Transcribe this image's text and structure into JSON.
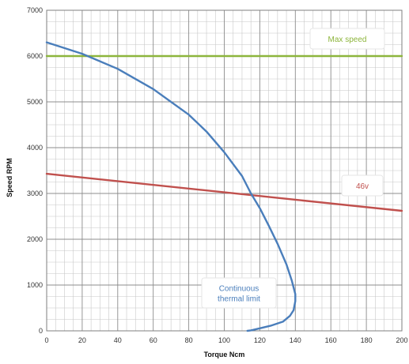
{
  "chart_data": {
    "type": "line",
    "title": "",
    "xlabel": "Torque Ncm",
    "ylabel": "Speed RPM",
    "xlim": [
      0,
      200
    ],
    "ylim": [
      0,
      7000
    ],
    "x_ticks": [
      0,
      20,
      40,
      60,
      80,
      100,
      120,
      140,
      160,
      180,
      200
    ],
    "y_ticks": [
      0,
      1000,
      2000,
      3000,
      4000,
      5000,
      6000,
      7000
    ],
    "x_minor_step": 5,
    "y_minor_step": 250,
    "grid": true,
    "series": [
      {
        "name": "Max speed",
        "color": "#8db53c",
        "x": [
          0,
          200
        ],
        "y": [
          6000,
          6000
        ]
      },
      {
        "name": "46v",
        "color": "#c0504d",
        "x": [
          0,
          200
        ],
        "y": [
          3430,
          2620
        ]
      },
      {
        "name": "Continuous thermal limit",
        "color": "#4a7ebb",
        "x": [
          0,
          20,
          40,
          60,
          80,
          90,
          100,
          110,
          115,
          120,
          125,
          130,
          135,
          138,
          140,
          140,
          139,
          137,
          133,
          126,
          120,
          115,
          113
        ],
        "y": [
          6300,
          6050,
          5720,
          5280,
          4720,
          4350,
          3900,
          3380,
          3000,
          2680,
          2300,
          1900,
          1450,
          1100,
          800,
          650,
          450,
          330,
          200,
          110,
          55,
          10,
          0
        ]
      }
    ],
    "annotations": [
      {
        "text": "Max speed",
        "series": "Max speed",
        "color": "#8db53c"
      },
      {
        "text": "46v",
        "series": "46v",
        "color": "#c0504d"
      },
      {
        "text_lines": [
          "Continuous",
          "thermal limit"
        ],
        "series": "Continuous thermal limit",
        "color": "#4a7ebb"
      }
    ]
  }
}
